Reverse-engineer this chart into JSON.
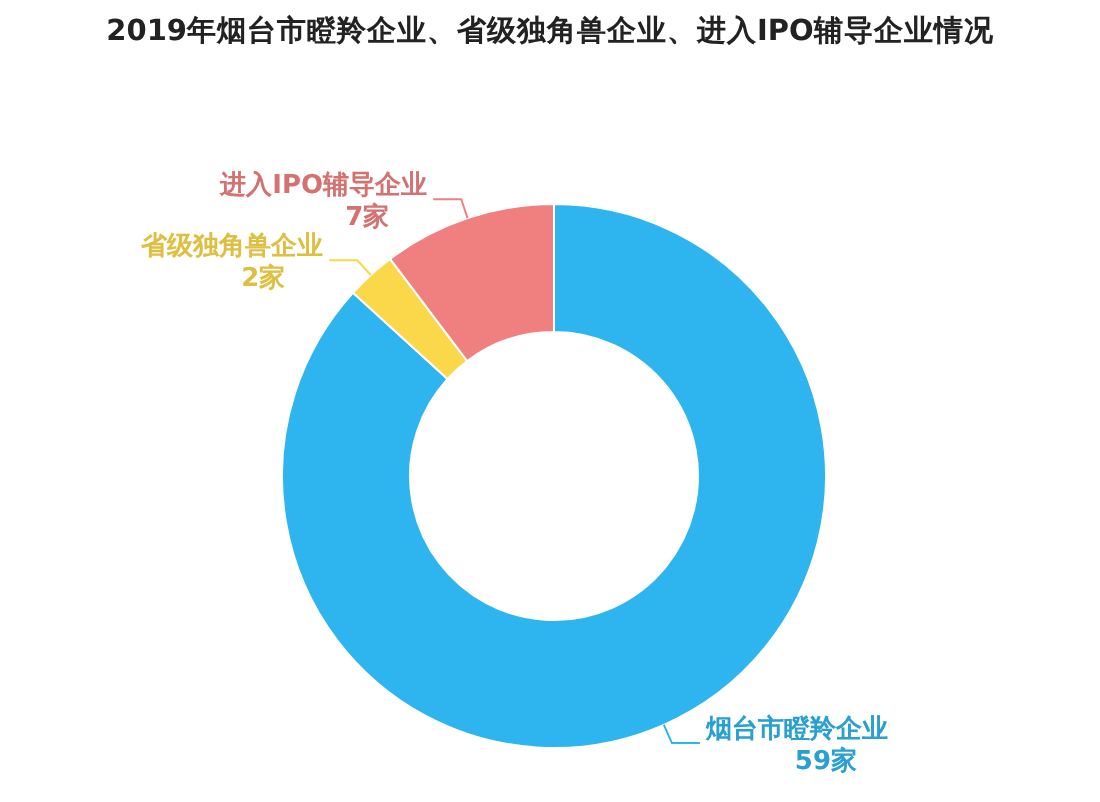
{
  "chart_data": {
    "type": "donut",
    "title": "2019年烟台市瞪羚企业、省级独角兽企业、进入IPO辅导企业情况",
    "categories": [
      "烟台市瞪羚企业",
      "省级独角兽企业",
      "进入IPO辅导企业"
    ],
    "values": [
      59,
      2,
      7
    ],
    "colors": [
      "#2eb4ee",
      "#fbd84a",
      "#f08080"
    ],
    "value_labels": [
      "59家",
      "2家",
      "7家"
    ]
  }
}
